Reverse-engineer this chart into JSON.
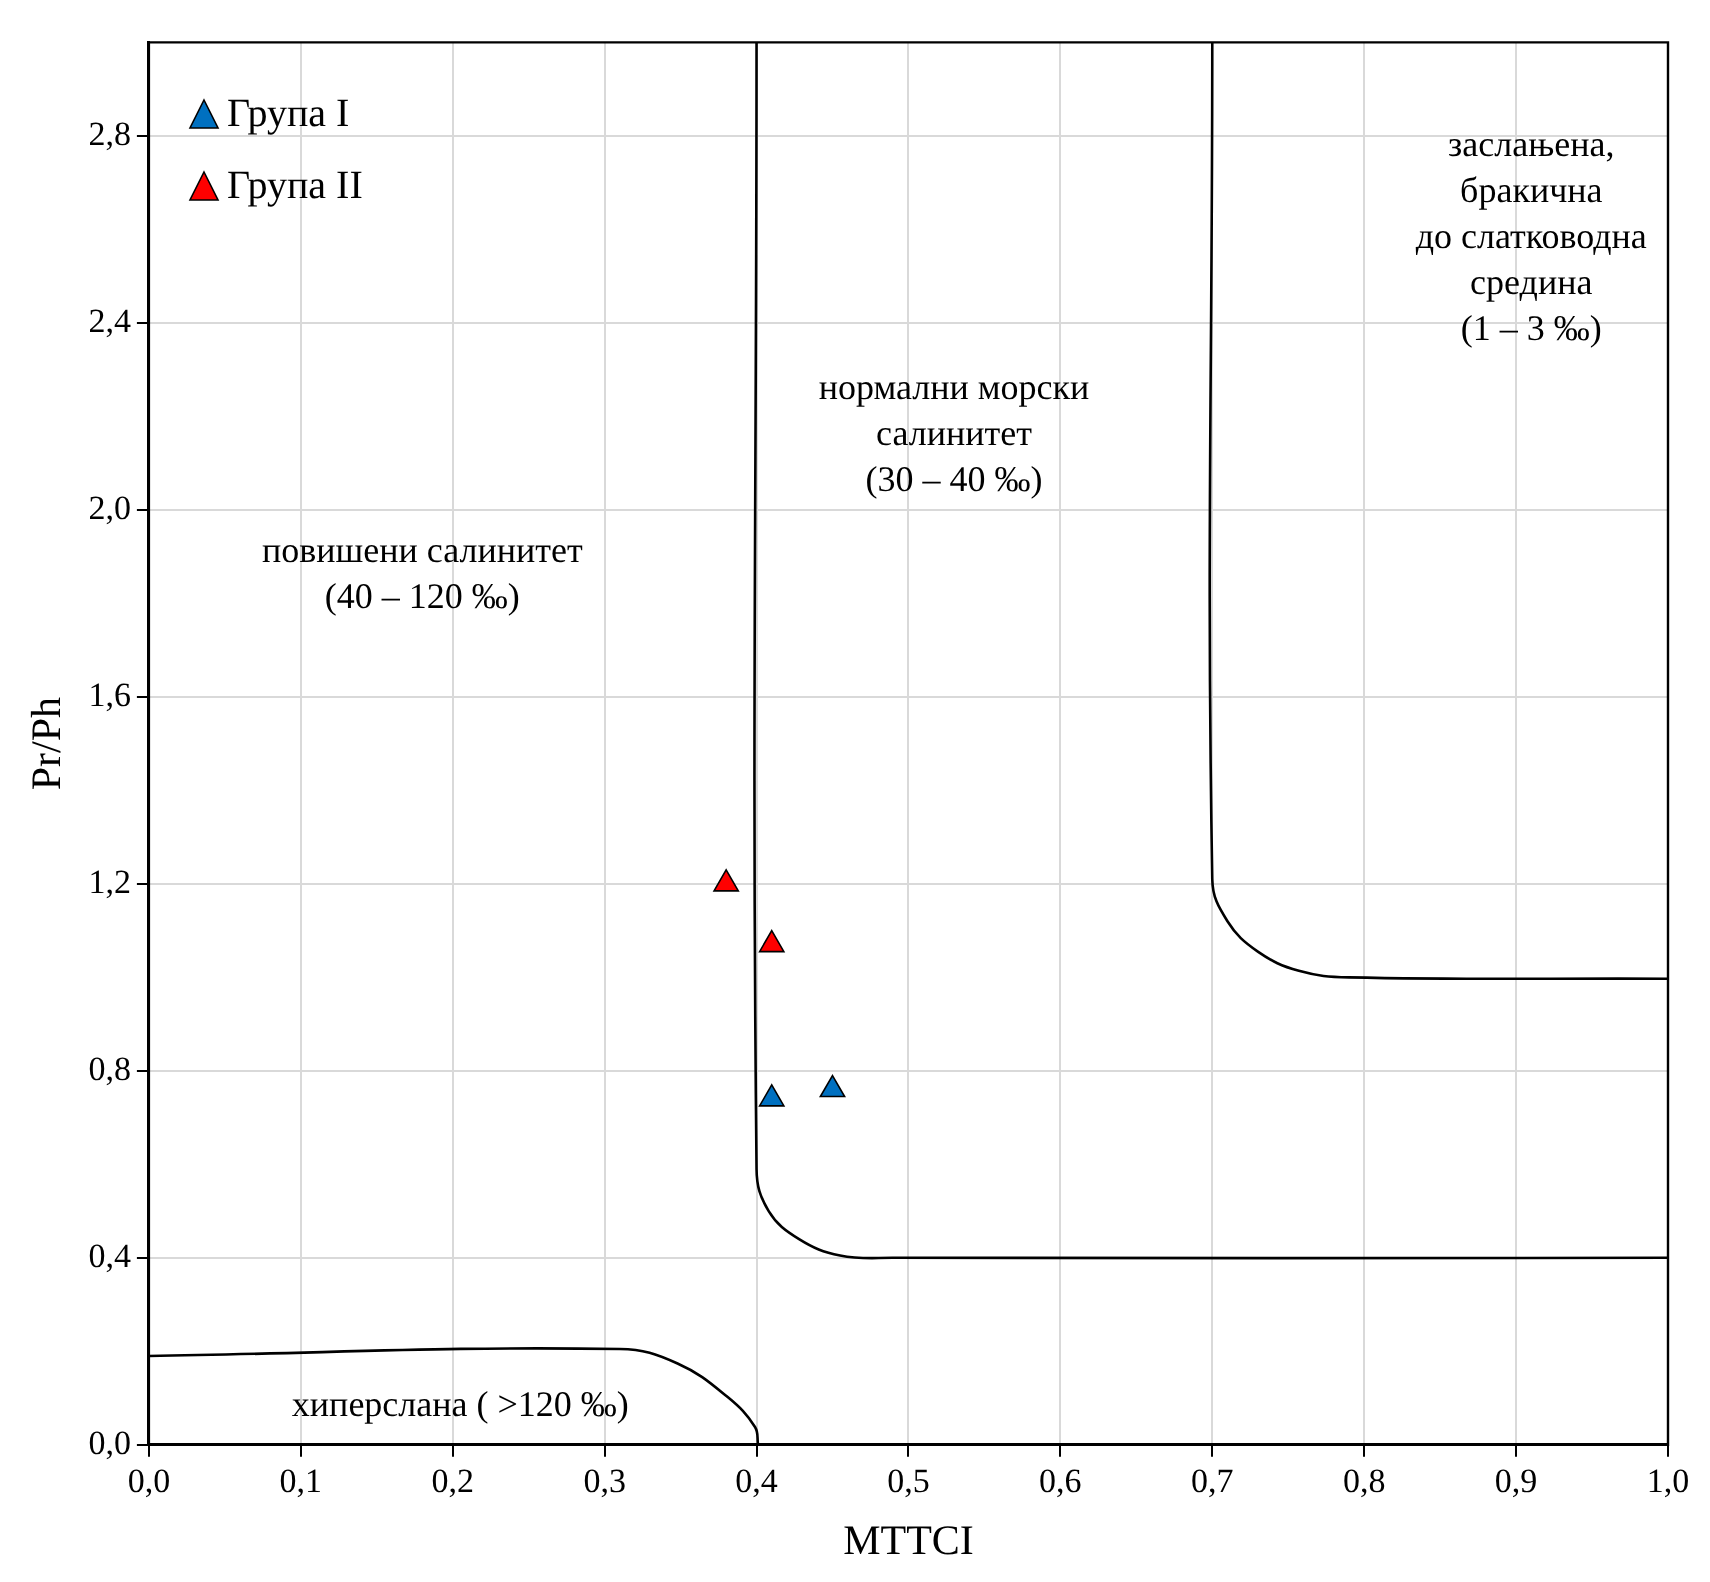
{
  "chart_data": {
    "type": "scatter",
    "xlabel": "MTTCI",
    "ylabel": "Pr/Ph",
    "xlim": [
      0,
      1
    ],
    "xticks": [
      {
        "value": 0,
        "label": "0,0"
      },
      {
        "value": 0.1,
        "label": "0,1"
      },
      {
        "value": 0.2,
        "label": "0,2"
      },
      {
        "value": 0.3,
        "label": "0,3"
      },
      {
        "value": 0.4,
        "label": "0,4"
      },
      {
        "value": 0.5,
        "label": "0,5"
      },
      {
        "value": 0.6,
        "label": "0,6"
      },
      {
        "value": 0.7,
        "label": "0,7"
      },
      {
        "value": 0.8,
        "label": "0,8"
      },
      {
        "value": 0.9,
        "label": "0,9"
      },
      {
        "value": 1,
        "label": "1,0"
      }
    ],
    "ylim": [
      0,
      3
    ],
    "yticks": [
      {
        "value": 0,
        "label": "0,0"
      },
      {
        "value": 0.4,
        "label": "0,4"
      },
      {
        "value": 0.8,
        "label": "0,8"
      },
      {
        "value": 1.2,
        "label": "1,2"
      },
      {
        "value": 1.6,
        "label": "1,6"
      },
      {
        "value": 2.0,
        "label": "2,0"
      },
      {
        "value": 2.4,
        "label": "2,4"
      },
      {
        "value": 2.8,
        "label": "2,8"
      }
    ],
    "grid": true,
    "legend": "top left",
    "series": [
      {
        "name": "Група I",
        "color": "#0070c0",
        "marker": "triangle",
        "x": [
          0.41,
          0.45
        ],
        "values": [
          0.74,
          0.76
        ]
      },
      {
        "name": "Група II",
        "color": "#ff0000",
        "marker": "triangle",
        "x": [
          0.38,
          0.41
        ],
        "values": [
          1.2,
          1.07
        ]
      },
      {
        "type": "line",
        "color": "#000000",
        "x": [
          0.4,
          0.4,
          0.408,
          0.428,
          0.455,
          0.49,
          1.0
        ],
        "values": [
          3.0,
          0.59,
          0.5,
          0.44,
          0.405,
          0.4,
          0.4
        ]
      },
      {
        "type": "line",
        "color": "#000000",
        "x": [
          0.7,
          0.7,
          0.71,
          0.73,
          0.757,
          0.79,
          1.0
        ],
        "values": [
          3.0,
          1.21,
          1.12,
          1.055,
          1.014,
          1.0,
          0.997
        ]
      },
      {
        "type": "line",
        "color": "#000000",
        "x": [
          0,
          0.31,
          0.348,
          0.381,
          0.399,
          0.401
        ],
        "values": [
          0.19,
          0.205,
          0.174,
          0.102,
          0.038,
          0
        ]
      }
    ],
    "annotations": [
      "заслањена,\nбракична\nдо слатководна\nсредина\n(1 – 3 ‰)",
      "нормални морски\nсалинитет\n(30 – 40 ‰)",
      "повишени салинитет\n(40 – 120 ‰)",
      "хиперслана ( >120 ‰)"
    ]
  }
}
